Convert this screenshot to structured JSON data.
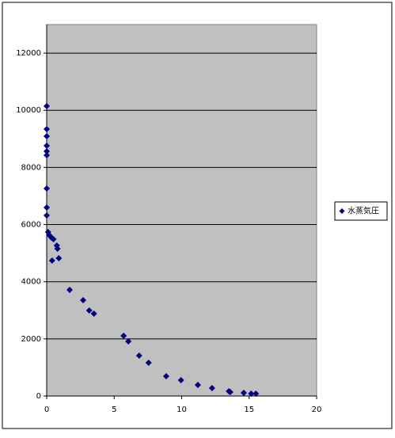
{
  "chart_data": {
    "type": "scatter",
    "x": [
      0,
      0,
      0,
      0,
      0,
      0,
      0,
      0,
      0,
      0.1,
      0.2,
      0.35,
      0.5,
      0.4,
      0.75,
      0.8,
      0.9,
      1.7,
      2.7,
      3.15,
      3.5,
      5.7,
      6.05,
      6.85,
      7.55,
      8.85,
      9.95,
      11.2,
      12.25,
      13.5,
      13.6,
      14.6,
      15.15,
      15.5
    ],
    "series": [
      {
        "name": "水蒸気圧",
        "color": "#000080",
        "values": [
          10144,
          9340,
          9090,
          8758,
          8564,
          8425,
          7262,
          6596,
          6319,
          5737,
          5626,
          5543,
          5488,
          4740,
          5266,
          5155,
          4823,
          3714,
          3354,
          2993,
          2882,
          2106,
          1912,
          1413,
          1164,
          693,
          554,
          388,
          277,
          166,
          139,
          111,
          83,
          83
        ]
      }
    ],
    "xlim": [
      0,
      20
    ],
    "xticks": [
      0,
      5,
      10,
      15,
      20
    ],
    "ylim": [
      0,
      13000
    ],
    "yticks": [
      0,
      2000,
      4000,
      6000,
      8000,
      10000,
      12000
    ],
    "grid": true,
    "legend": "right",
    "plot_background": "#c0c0c0"
  }
}
